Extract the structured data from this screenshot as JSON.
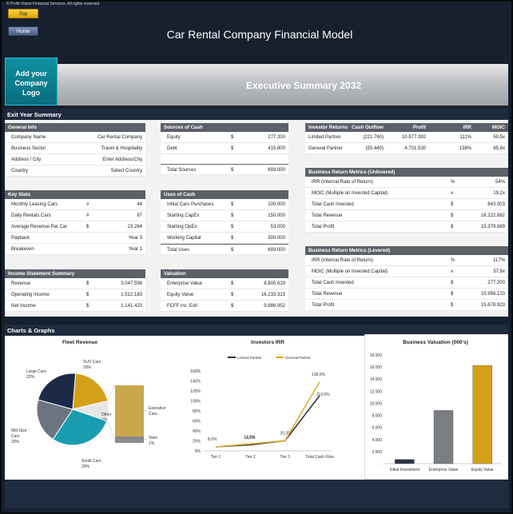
{
  "copyright": "© Profit Vision Financial Services. All rights reserved.",
  "nav": {
    "top_label": "Top",
    "home_label": "Home"
  },
  "app_title": "Car Rental Company Financial Model",
  "logo_text": "Add your Company Logo",
  "exec_title": "Executive Summary 2032",
  "exit_section_title": "Exit Year Summary",
  "charts_section_title": "Charts & Graphs",
  "general_info": {
    "title": "General Info",
    "rows": [
      {
        "label": "Company Name",
        "value": "Car Rental Company"
      },
      {
        "label": "Business Sector",
        "value": "Travel & Hospitality"
      },
      {
        "label": "Address / City",
        "value": "Enter Address/City"
      },
      {
        "label": "Country",
        "value": "Select Country"
      }
    ]
  },
  "key_stats": {
    "title": "Key Stats",
    "rows": [
      {
        "label": "Monthly Leasing Cars",
        "cur": "#",
        "value": "44"
      },
      {
        "label": "Daily Rentals Cars",
        "cur": "#",
        "value": "87"
      },
      {
        "label": "Average Revenue Per Car",
        "cur": "$",
        "value": "23.264"
      },
      {
        "label": "Payback",
        "cur": "",
        "value": "Year 3"
      },
      {
        "label": "Breakeven",
        "cur": "",
        "value": "Year 1"
      }
    ]
  },
  "income_summary": {
    "title": "Income Statement Summary",
    "rows": [
      {
        "label": "Revenue",
        "cur": "$",
        "value": "3.047.598"
      },
      {
        "label": "Operating Income",
        "cur": "$",
        "value": "1.512.183"
      },
      {
        "label": "Net Income",
        "cur": "$",
        "value": "1.141.420"
      }
    ]
  },
  "sources_cash": {
    "title": "Sources of Cash",
    "rows": [
      {
        "label": "Equity",
        "cur": "$",
        "value": "277.200"
      },
      {
        "label": "Debt",
        "cur": "$",
        "value": "415.800"
      }
    ],
    "total_label": "Total Sources",
    "total_cur": "$",
    "total_value": "693.000"
  },
  "uses_cash": {
    "title": "Uses of Cash",
    "rows": [
      {
        "label": "Initial Cars Purchases",
        "cur": "$",
        "value": "100.000"
      },
      {
        "label": "Starting CapEx",
        "cur": "$",
        "value": "150.000"
      },
      {
        "label": "Starting OpEx",
        "cur": "$",
        "value": "53.000"
      },
      {
        "label": "Working Capital",
        "cur": "$",
        "value": "300.000"
      }
    ],
    "total_label": "Total Uses",
    "total_cur": "$",
    "total_value": "693.000"
  },
  "valuation": {
    "title": "Valuation",
    "rows": [
      {
        "label": "Enterprise Value",
        "cur": "$",
        "value": "8.805.629"
      },
      {
        "label": "Equity Value",
        "cur": "$",
        "value": "16.233.323"
      },
      {
        "label": "FCFF inc. Exit",
        "cur": "$",
        "value": "9.886.952"
      }
    ]
  },
  "investor_returns": {
    "headers": [
      "Investor Returns",
      "Cash Outflow",
      "Profit",
      "IRR",
      "MOIC"
    ],
    "rows": [
      {
        "label": "Limited Partner",
        "outflow": "(221.760)",
        "profit": "10.977.392",
        "irr": "111%",
        "moic": "50,5x"
      },
      {
        "label": "General Partner",
        "outflow": "(55.440)",
        "profit": "4.701.530",
        "irr": "138%",
        "moic": "85,8x"
      }
    ]
  },
  "unlevered": {
    "title": "Business Return Metrics (Unlevered)",
    "rows": [
      {
        "label": "IRR (Internal Rate of Return)",
        "cur": "%",
        "value": "54%"
      },
      {
        "label": "MOIC (Multiple on Invested Capital)",
        "cur": "x",
        "value": "19,2x"
      },
      {
        "label": "Total Cash Invested",
        "cur": "$",
        "value": "843.003"
      },
      {
        "label": "Total Revenue",
        "cur": "$",
        "value": "16.222.882"
      },
      {
        "label": "Total Profit",
        "cur": "$",
        "value": "15.379.889"
      }
    ]
  },
  "levered": {
    "title": "Business Return Metrics (Levered)",
    "rows": [
      {
        "label": "IRR (Internal Rate of Return)",
        "cur": "%",
        "value": "117%"
      },
      {
        "label": "MOIC (Multiple on Invested Capital)",
        "cur": "x",
        "value": "57,6x"
      },
      {
        "label": "Total Cash Invested",
        "cur": "$",
        "value": "277.200"
      },
      {
        "label": "Total Revenue",
        "cur": "$",
        "value": "15.956.123"
      },
      {
        "label": "Total Profit",
        "cur": "$",
        "value": "15.678.923"
      }
    ]
  },
  "chart_data": [
    {
      "type": "pie",
      "title": "Fleet Revenue",
      "slices": [
        {
          "label": "SUV Cars",
          "value": 20,
          "display": "20%",
          "color": "#d4a017"
        },
        {
          "label": "Other",
          "value": 9,
          "display": "9%",
          "color": "#e6e6e6"
        },
        {
          "label": "Small Cars",
          "value": 29,
          "display": "29%",
          "color": "#1a9cb0"
        },
        {
          "label": "Mid-Size Cars",
          "value": 20,
          "display": "20%",
          "color": "#6b7480"
        },
        {
          "label": "Large Cars",
          "value": 22,
          "display": "22%",
          "color": "#1c2a48"
        }
      ],
      "breakdown": [
        {
          "label": "Executive Cars...",
          "value": 8,
          "color": "#c9a84a"
        },
        {
          "label": "Vans",
          "value": 1,
          "display": "1%",
          "color": "#8a8a8a"
        }
      ]
    },
    {
      "type": "line",
      "title": "Investors IRR",
      "categories": [
        "Tier 1",
        "Tier 2",
        "Tier 3",
        "Total Cash Flow"
      ],
      "ylim": [
        0,
        160
      ],
      "yticks": [
        "0%",
        "20%",
        "40%",
        "60%",
        "80%",
        "100%",
        "120%",
        "140%",
        "160%"
      ],
      "series": [
        {
          "name": "Limited Partner",
          "values": [
            8.0,
            12.0,
            20.3,
            110.6
          ],
          "labels": [
            "8,0%",
            "12,0%",
            "20,3%",
            "110,6%"
          ],
          "color": "#2a3346"
        },
        {
          "name": "General Partner",
          "values": [
            8.0,
            14.1,
            20.3,
            138.0
          ],
          "labels": [
            "",
            "14,1%",
            "",
            "138,0%"
          ],
          "color": "#e0b030"
        }
      ]
    },
    {
      "type": "bar",
      "title": "Business Valuation (000's)",
      "categories": [
        "Initial Investment",
        "Enterprise Value",
        "Equity Value"
      ],
      "values": [
        693,
        8806,
        16233
      ],
      "colors": [
        "#2a3346",
        "#7a7d82",
        "#d4a017"
      ],
      "ylim": [
        0,
        18000
      ],
      "yticks": [
        "-",
        "2.000",
        "4.000",
        "6.000",
        "8.000",
        "10.000",
        "12.000",
        "14.000",
        "16.000",
        "18.000"
      ]
    }
  ]
}
